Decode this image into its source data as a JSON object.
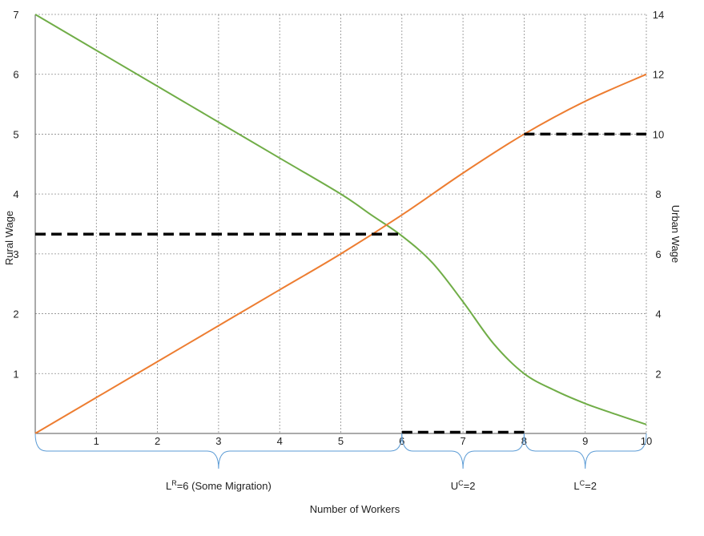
{
  "chart_data": {
    "type": "line",
    "title": "",
    "xlabel": "Number of Workers",
    "ylabel_left": "Rural Wage",
    "ylabel_right": "Urban Wage",
    "xlim": [
      0,
      10
    ],
    "ylim_left": [
      0,
      7
    ],
    "ylim_right": [
      0,
      14
    ],
    "x_ticks": [
      "1",
      "2",
      "3",
      "4",
      "5",
      "6",
      "7",
      "8",
      "9",
      "10"
    ],
    "y_ticks_left": [
      "1",
      "2",
      "3",
      "4",
      "5",
      "6",
      "7"
    ],
    "y_ticks_right": [
      "2",
      "4",
      "6",
      "8",
      "10",
      "12",
      "14"
    ],
    "grid": "dashed",
    "colors": {
      "rural_curve": "#70ad47",
      "urban_curve": "#ed7d31",
      "dashed_lines": "#000000",
      "braces": "#5b9bd5"
    },
    "series": [
      {
        "axis": "left",
        "color": "#70ad47",
        "x": [
          0,
          1,
          2,
          3,
          4,
          5,
          5.5,
          6,
          6.5,
          7,
          7.5,
          8,
          8.5,
          9,
          9.5,
          10
        ],
        "y": [
          7,
          6.4,
          5.8,
          5.2,
          4.6,
          4.0,
          3.65,
          3.3,
          2.85,
          2.2,
          1.5,
          1.0,
          0.72,
          0.5,
          0.32,
          0.15
        ]
      },
      {
        "axis": "right",
        "color": "#ed7d31",
        "x": [
          0,
          1,
          2,
          3,
          4,
          5,
          6,
          7,
          8,
          9,
          10
        ],
        "y": [
          0,
          1.2,
          2.4,
          3.6,
          4.8,
          6.0,
          7.3,
          8.7,
          10.0,
          11.1,
          12.0
        ]
      }
    ],
    "dashed_lines": [
      {
        "axis": "left",
        "x_start": 0,
        "x_end": 6,
        "y": 3.33
      },
      {
        "axis": "left",
        "x_start": 8,
        "x_end": 10,
        "y": 5.0
      },
      {
        "axis": "left",
        "x_start": 6,
        "x_end": 8,
        "y": 0.02
      }
    ],
    "braces": [
      {
        "x_start": 0,
        "x_end": 6,
        "label": "=6 (Some Migration)",
        "base": "L",
        "sup": "R"
      },
      {
        "x_start": 6,
        "x_end": 8,
        "label": "=2",
        "base": "U",
        "sup": "C"
      },
      {
        "x_start": 8,
        "x_end": 10,
        "label": "=2",
        "base": "L",
        "sup": "C"
      }
    ]
  }
}
